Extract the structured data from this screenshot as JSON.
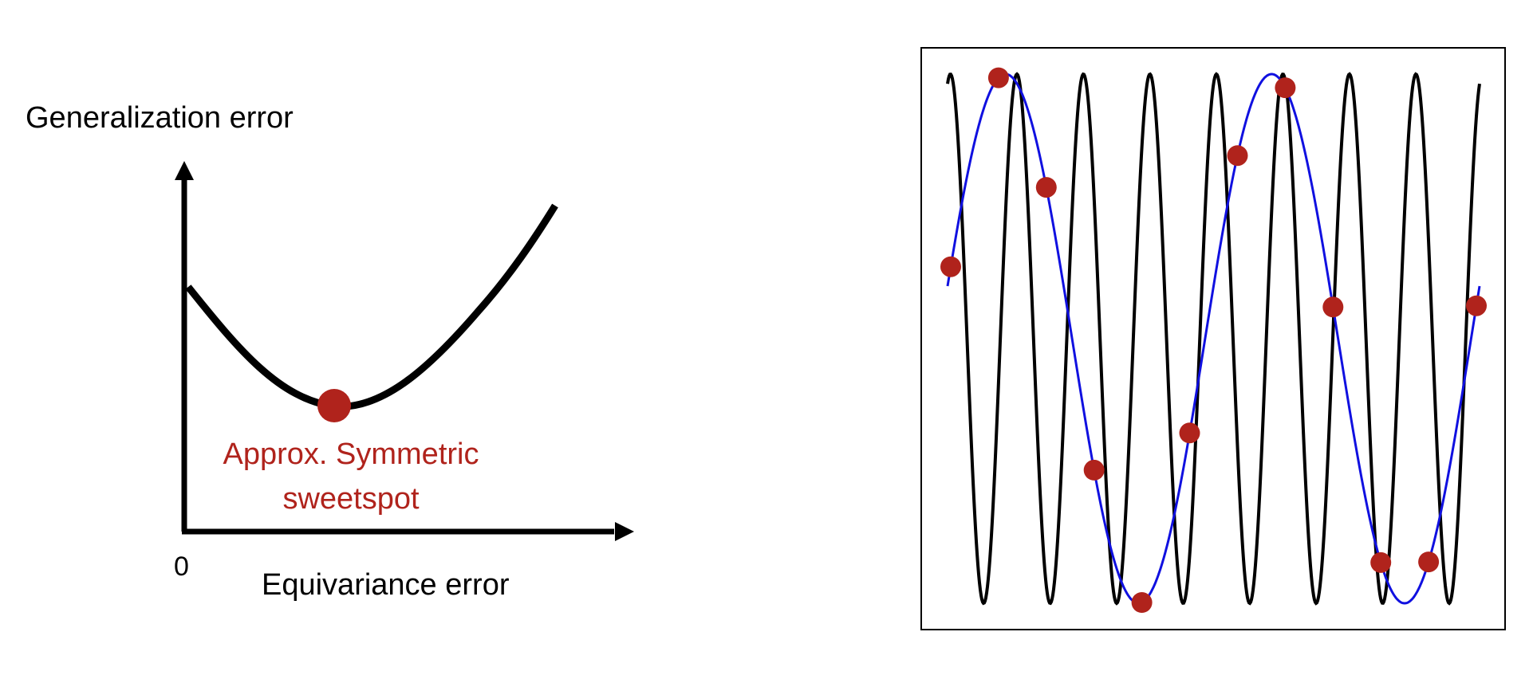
{
  "left_diagram": {
    "y_axis_label": "Generalization error",
    "x_axis_label": "Equivariance error",
    "origin_label": "0",
    "sweetspot_label_line1": "Approx. Symmetric",
    "sweetspot_label_line2": "sweetspot"
  },
  "right_diagram": {
    "samples_count": 12
  },
  "colors": {
    "axis": "#000000",
    "curve": "#000000",
    "marker": "#b0231c",
    "high_freq_wave": "#000000",
    "low_freq_wave": "#1010e0",
    "frame": "#000000"
  }
}
